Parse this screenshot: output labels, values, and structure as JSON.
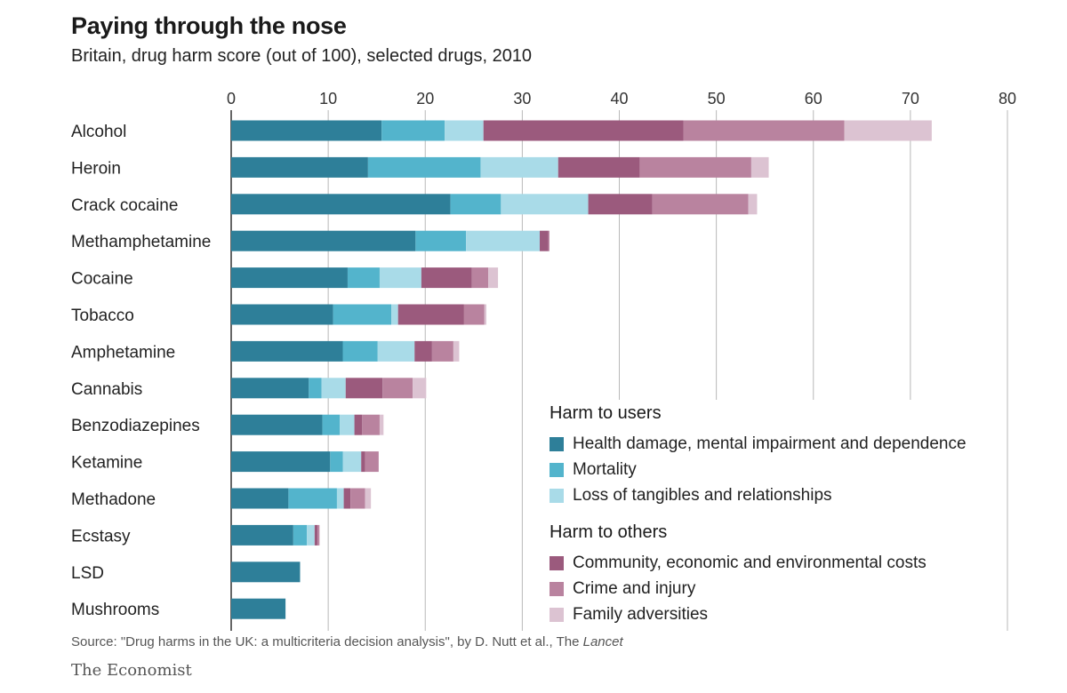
{
  "header": {
    "title": "Paying through the nose",
    "subtitle": "Britain, drug harm score (out of 100), selected drugs, 2010"
  },
  "footer": {
    "source_prefix": "Source: \"Drug harms in the UK: a multicriteria decision analysis\", by D. Nutt et al., The ",
    "source_journal": "Lancet",
    "brand": "The Economist"
  },
  "legend": {
    "users_heading": "Harm to users",
    "others_heading": "Harm to others",
    "users_items": [
      {
        "label": "Health damage, mental impairment and dependence",
        "color": "#2e7f99"
      },
      {
        "label": "Mortality",
        "color": "#53b4cc"
      },
      {
        "label": "Loss of tangibles and relationships",
        "color": "#a9dbe8"
      }
    ],
    "others_items": [
      {
        "label": "Community, economic and environmental costs",
        "color": "#9b5a7d"
      },
      {
        "label": "Crime and injury",
        "color": "#b9839f"
      },
      {
        "label": "Family adversities",
        "color": "#dcc3d2"
      }
    ]
  },
  "chart_data": {
    "type": "bar",
    "orientation": "horizontal",
    "stacked": true,
    "title": "Paying through the nose",
    "subtitle": "Britain, drug harm score (out of 100), selected drugs, 2010",
    "xlim": [
      0,
      80
    ],
    "xticks": [
      0,
      10,
      20,
      30,
      40,
      50,
      60,
      70,
      80
    ],
    "grid": true,
    "xaxis_position": "top",
    "legend_position": "bottom-right",
    "categories": [
      "Alcohol",
      "Heroin",
      "Crack cocaine",
      "Methamphetamine",
      "Cocaine",
      "Tobacco",
      "Amphetamine",
      "Cannabis",
      "Benzodiazepines",
      "Ketamine",
      "Methadone",
      "Ecstasy",
      "LSD",
      "Mushrooms"
    ],
    "series": [
      {
        "name": "Health damage, mental impairment and dependence",
        "color": "#2e7f99",
        "values": [
          15.5,
          14.1,
          22.6,
          19.0,
          12.0,
          10.5,
          11.5,
          8.0,
          9.4,
          10.2,
          5.9,
          6.4,
          7.1,
          5.6
        ]
      },
      {
        "name": "Mortality",
        "color": "#53b4cc",
        "values": [
          6.5,
          11.6,
          5.2,
          5.2,
          3.3,
          6.0,
          3.6,
          1.3,
          1.8,
          1.3,
          5.0,
          1.4,
          0,
          0
        ]
      },
      {
        "name": "Loss of tangibles and relationships",
        "color": "#a9dbe8",
        "values": [
          4.0,
          8.0,
          9.0,
          7.6,
          4.3,
          0.7,
          3.8,
          2.5,
          1.5,
          1.9,
          0.7,
          0.8,
          0,
          0
        ]
      },
      {
        "name": "Community, economic and environmental costs",
        "color": "#9b5a7d",
        "values": [
          20.6,
          8.4,
          6.6,
          0.9,
          5.2,
          6.8,
          1.8,
          3.8,
          0.8,
          0.4,
          0.7,
          0.3,
          0,
          0
        ]
      },
      {
        "name": "Crime and injury",
        "color": "#b9839f",
        "values": [
          16.6,
          11.5,
          9.9,
          0.1,
          1.7,
          2.1,
          2.2,
          3.1,
          1.8,
          1.4,
          1.5,
          0.2,
          0,
          0
        ]
      },
      {
        "name": "Family adversities",
        "color": "#dcc3d2",
        "values": [
          9.0,
          1.8,
          0.9,
          0,
          1.0,
          0.2,
          0.6,
          1.4,
          0.4,
          0,
          0.6,
          0,
          0,
          0
        ]
      }
    ]
  }
}
